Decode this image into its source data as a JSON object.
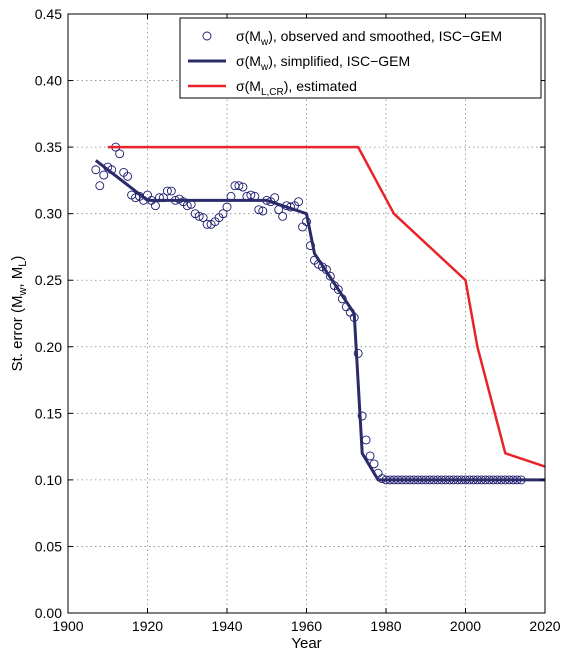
{
  "chart_data": {
    "type": "line",
    "xlabel": "Year",
    "ylabel_parts": [
      "St. error (M",
      "w",
      ", M",
      "L",
      ")"
    ],
    "xlim": [
      1900,
      2020
    ],
    "ylim": [
      0,
      0.45
    ],
    "x_ticks": [
      1900,
      1920,
      1940,
      1960,
      1980,
      2000,
      2020
    ],
    "y_ticks": [
      "0.00",
      "0.05",
      "0.10",
      "0.15",
      "0.20",
      "0.25",
      "0.30",
      "0.35",
      "0.40",
      "0.45"
    ],
    "grid": true,
    "legend_placement": "top-right",
    "series": [
      {
        "legend_parts": [
          "σ(M",
          "w",
          "), observed and smoothed, ISC−GEM"
        ],
        "style": "markers",
        "color": "#1a1a6e",
        "points": [
          [
            1907,
            0.333
          ],
          [
            1908,
            0.321
          ],
          [
            1909,
            0.329
          ],
          [
            1910,
            0.335
          ],
          [
            1911,
            0.333
          ],
          [
            1912,
            0.35
          ],
          [
            1913,
            0.345
          ],
          [
            1914,
            0.331
          ],
          [
            1915,
            0.328
          ],
          [
            1916,
            0.314
          ],
          [
            1917,
            0.312
          ],
          [
            1918,
            0.313
          ],
          [
            1919,
            0.31
          ],
          [
            1920,
            0.314
          ],
          [
            1921,
            0.31
          ],
          [
            1922,
            0.306
          ],
          [
            1923,
            0.312
          ],
          [
            1924,
            0.312
          ],
          [
            1925,
            0.317
          ],
          [
            1926,
            0.317
          ],
          [
            1927,
            0.31
          ],
          [
            1928,
            0.311
          ],
          [
            1929,
            0.309
          ],
          [
            1930,
            0.306
          ],
          [
            1931,
            0.307
          ],
          [
            1932,
            0.3
          ],
          [
            1933,
            0.298
          ],
          [
            1934,
            0.297
          ],
          [
            1935,
            0.292
          ],
          [
            1936,
            0.292
          ],
          [
            1937,
            0.294
          ],
          [
            1938,
            0.297
          ],
          [
            1939,
            0.3
          ],
          [
            1940,
            0.305
          ],
          [
            1941,
            0.313
          ],
          [
            1942,
            0.321
          ],
          [
            1943,
            0.321
          ],
          [
            1944,
            0.32
          ],
          [
            1945,
            0.313
          ],
          [
            1946,
            0.314
          ],
          [
            1947,
            0.313
          ],
          [
            1948,
            0.303
          ],
          [
            1949,
            0.302
          ],
          [
            1950,
            0.31
          ],
          [
            1951,
            0.309
          ],
          [
            1952,
            0.312
          ],
          [
            1953,
            0.303
          ],
          [
            1954,
            0.298
          ],
          [
            1955,
            0.306
          ],
          [
            1956,
            0.305
          ],
          [
            1957,
            0.306
          ],
          [
            1958,
            0.309
          ],
          [
            1959,
            0.29
          ],
          [
            1960,
            0.294
          ],
          [
            1961,
            0.276
          ],
          [
            1962,
            0.265
          ],
          [
            1963,
            0.262
          ],
          [
            1964,
            0.26
          ],
          [
            1965,
            0.258
          ],
          [
            1966,
            0.253
          ],
          [
            1967,
            0.246
          ],
          [
            1968,
            0.243
          ],
          [
            1969,
            0.236
          ],
          [
            1970,
            0.23
          ],
          [
            1971,
            0.226
          ],
          [
            1972,
            0.222
          ],
          [
            1973,
            0.195
          ],
          [
            1974,
            0.148
          ],
          [
            1975,
            0.13
          ],
          [
            1976,
            0.118
          ],
          [
            1977,
            0.112
          ],
          [
            1978,
            0.105
          ],
          [
            1979,
            0.101
          ],
          [
            1980,
            0.1
          ],
          [
            1981,
            0.1
          ],
          [
            1982,
            0.1
          ],
          [
            1983,
            0.1
          ],
          [
            1984,
            0.1
          ],
          [
            1985,
            0.1
          ],
          [
            1986,
            0.1
          ],
          [
            1987,
            0.1
          ],
          [
            1988,
            0.1
          ],
          [
            1989,
            0.1
          ],
          [
            1990,
            0.1
          ],
          [
            1991,
            0.1
          ],
          [
            1992,
            0.1
          ],
          [
            1993,
            0.1
          ],
          [
            1994,
            0.1
          ],
          [
            1995,
            0.1
          ],
          [
            1996,
            0.1
          ],
          [
            1997,
            0.1
          ],
          [
            1998,
            0.1
          ],
          [
            1999,
            0.1
          ],
          [
            2000,
            0.1
          ],
          [
            2001,
            0.1
          ],
          [
            2002,
            0.1
          ],
          [
            2003,
            0.1
          ],
          [
            2004,
            0.1
          ],
          [
            2005,
            0.1
          ],
          [
            2006,
            0.1
          ],
          [
            2007,
            0.1
          ],
          [
            2008,
            0.1
          ],
          [
            2009,
            0.1
          ],
          [
            2010,
            0.1
          ],
          [
            2011,
            0.1
          ],
          [
            2012,
            0.1
          ],
          [
            2013,
            0.1
          ],
          [
            2014,
            0.1
          ]
        ]
      },
      {
        "legend_parts": [
          "σ(M",
          "w",
          "), simplified, ISC−GEM"
        ],
        "style": "line",
        "color": "#2b2b6b",
        "points": [
          [
            1907,
            0.34
          ],
          [
            1920,
            0.31
          ],
          [
            1950,
            0.31
          ],
          [
            1960,
            0.3
          ],
          [
            1962,
            0.27
          ],
          [
            1972,
            0.225
          ],
          [
            1974,
            0.12
          ],
          [
            1978,
            0.1
          ],
          [
            2020,
            0.1
          ]
        ]
      },
      {
        "legend_parts": [
          "σ(M",
          "L,CR",
          "), estimated"
        ],
        "style": "line",
        "color": "#e8242a",
        "points": [
          [
            1910,
            0.35
          ],
          [
            1973,
            0.35
          ],
          [
            1982,
            0.3
          ],
          [
            2000,
            0.25
          ],
          [
            2003,
            0.2
          ],
          [
            2010,
            0.12
          ],
          [
            2020,
            0.11
          ]
        ]
      }
    ]
  }
}
